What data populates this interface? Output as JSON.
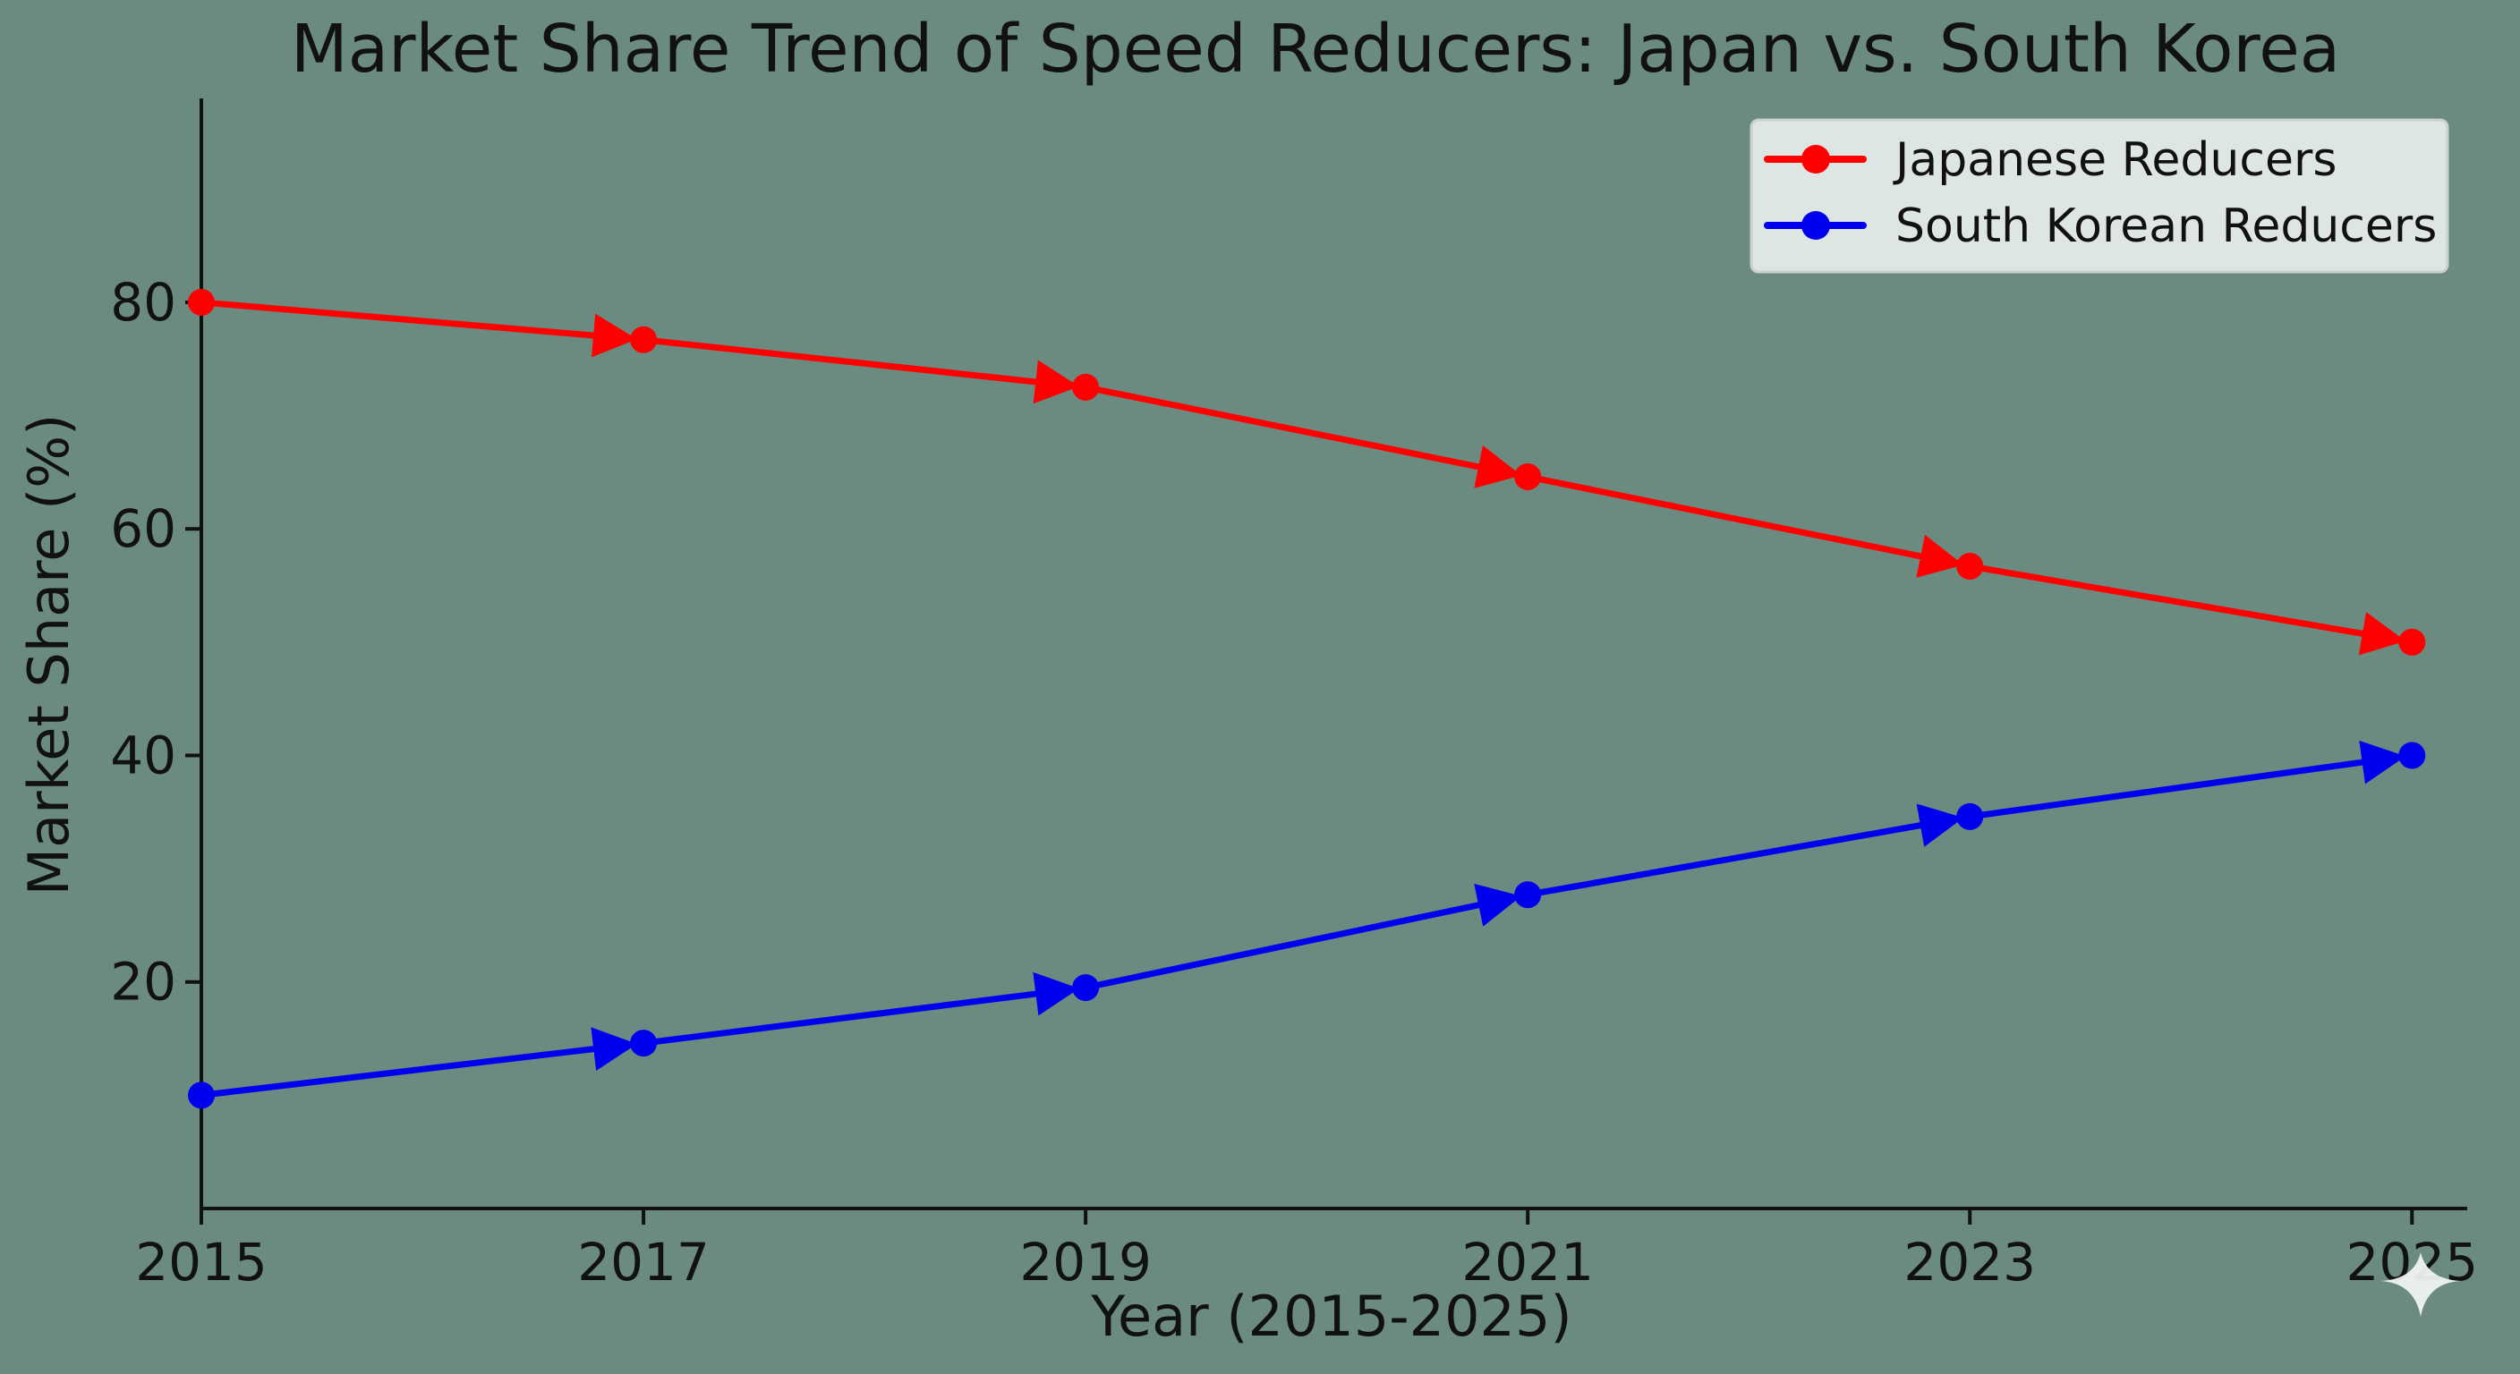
{
  "chart_data": {
    "type": "line",
    "title": "Market Share Trend of Speed Reducers: Japan vs. South Korea",
    "xlabel": "Year (2015-2025)",
    "ylabel": "Market Share (%)",
    "x": [
      2015,
      2017,
      2019,
      2021,
      2023,
      2025
    ],
    "xticks": [
      "2015",
      "2017",
      "2019",
      "2021",
      "2023",
      "2025"
    ],
    "yticks": [
      "20",
      "40",
      "60",
      "80"
    ],
    "xlim": [
      2015,
      2025.1
    ],
    "ylim": [
      0,
      98
    ],
    "legend_position": "top-right",
    "series": [
      {
        "name": "Japanese Reducers",
        "color": "#ff0000",
        "marker": "circle",
        "values": [
          80,
          76.7,
          72.5,
          64.6,
          56.7,
          50
        ]
      },
      {
        "name": "South Korean Reducers",
        "color": "#0000ee",
        "marker": "circle",
        "values": [
          10,
          14.6,
          19.5,
          27.7,
          34.6,
          40
        ]
      }
    ]
  },
  "colors": {
    "background": "#6b8a80",
    "axis": "#111111",
    "legend_background": "#dde6e3",
    "legend_border": "#c7d0cd"
  }
}
